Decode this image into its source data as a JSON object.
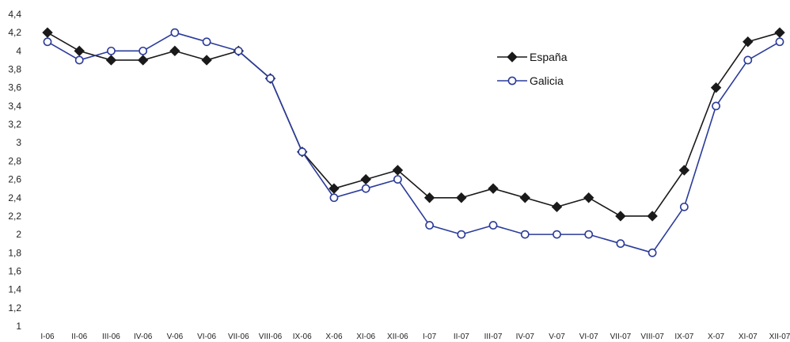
{
  "chart_data": {
    "type": "line",
    "categories": [
      "I-06",
      "II-06",
      "III-06",
      "IV-06",
      "V-06",
      "VI-06",
      "VII-06",
      "VIII-06",
      "IX-06",
      "X-06",
      "XI-06",
      "XII-06",
      "I-07",
      "II-07",
      "III-07",
      "IV-07",
      "V-07",
      "VI-07",
      "VII-07",
      "VIII-07",
      "IX-07",
      "X-07",
      "XI-07",
      "XII-07"
    ],
    "series": [
      {
        "name": "España",
        "color": "#1a1a1a",
        "marker": "filled-diamond",
        "values": [
          4.2,
          4.0,
          3.9,
          3.9,
          4.0,
          3.9,
          4.0,
          3.7,
          2.9,
          2.5,
          2.6,
          2.7,
          2.4,
          2.4,
          2.5,
          2.4,
          2.3,
          2.4,
          2.2,
          2.2,
          2.7,
          3.6,
          4.1,
          4.2
        ]
      },
      {
        "name": "Galicia",
        "color": "#2b3b9a",
        "marker": "open-circle",
        "values": [
          4.1,
          3.9,
          4.0,
          4.0,
          4.2,
          4.1,
          4.0,
          3.7,
          2.9,
          2.4,
          2.5,
          2.6,
          2.1,
          2.0,
          2.1,
          2.0,
          2.0,
          2.0,
          1.9,
          1.8,
          2.3,
          3.4,
          3.9,
          4.1
        ]
      }
    ],
    "y_ticks": [
      "1",
      "1,2",
      "1,4",
      "1,6",
      "1,8",
      "2",
      "2,2",
      "2,4",
      "2,6",
      "2,8",
      "3",
      "3,2",
      "3,4",
      "3,6",
      "3,8",
      "4",
      "4,2",
      "4,4"
    ],
    "ylim": [
      1,
      4.4
    ],
    "title": "",
    "xlabel": "",
    "ylabel": "",
    "grid": false,
    "legend_position": "top-right"
  }
}
